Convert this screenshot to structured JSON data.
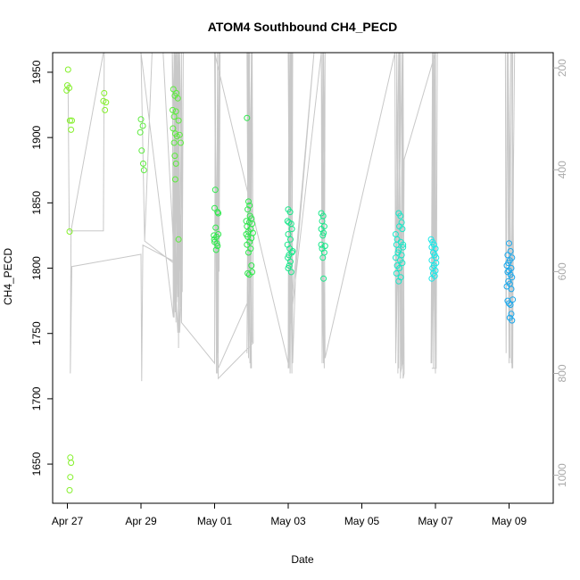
{
  "chart_data": {
    "type": "scatter",
    "title": "ATOM4 Southbound CH4_PECD",
    "xlabel": "Date",
    "ylabel": "CH4_PECD",
    "x_tick_labels": [
      {
        "label": "Apr 27",
        "day": 0
      },
      {
        "label": "Apr 29",
        "day": 2
      },
      {
        "label": "May 01",
        "day": 4
      },
      {
        "label": "May 03",
        "day": 6
      },
      {
        "label": "May 05",
        "day": 8
      },
      {
        "label": "May 07",
        "day": 10
      },
      {
        "label": "May 09",
        "day": 12
      }
    ],
    "xlim": [
      -0.4,
      13.2
    ],
    "ylim": [
      1620,
      1965
    ],
    "yticks": [
      1650,
      1700,
      1750,
      1800,
      1850,
      1900,
      1950
    ],
    "y2lim": [
      1055,
      170
    ],
    "y2ticks": [
      200,
      400,
      600,
      800,
      1000
    ],
    "y2_color": "#aaaaaa",
    "point_colors": [
      "#84f02a",
      "#5bec3c",
      "#2ee84c",
      "#18e88a",
      "#18e8c8",
      "#18e8e8",
      "#1aa8ec"
    ],
    "series": [
      {
        "color_index": 0,
        "points": [
          [
            0.02,
            1952
          ],
          [
            0.0,
            1940
          ],
          [
            0.05,
            1938
          ],
          [
            -0.02,
            1936
          ],
          [
            0.07,
            1913
          ],
          [
            0.12,
            1913
          ],
          [
            0.1,
            1906
          ],
          [
            0.06,
            1828
          ],
          [
            0.08,
            1655
          ],
          [
            0.1,
            1651
          ],
          [
            0.08,
            1640
          ],
          [
            0.06,
            1630
          ]
        ]
      },
      {
        "color_index": 0,
        "points": [
          [
            1.0,
            1934
          ],
          [
            0.98,
            1928
          ],
          [
            1.05,
            1927
          ],
          [
            1.02,
            1921
          ]
        ]
      },
      {
        "color_index": 1,
        "points": [
          [
            2.0,
            1914
          ],
          [
            2.05,
            1909
          ],
          [
            1.98,
            1904
          ],
          [
            2.02,
            1890
          ],
          [
            2.06,
            1880
          ],
          [
            2.08,
            1875
          ]
        ]
      },
      {
        "color_index": 1,
        "points": [
          [
            2.88,
            1937
          ],
          [
            2.92,
            1932
          ],
          [
            2.96,
            1934
          ],
          [
            3.0,
            1930
          ],
          [
            2.86,
            1921
          ],
          [
            2.95,
            1920
          ],
          [
            2.9,
            1916
          ],
          [
            3.02,
            1913
          ],
          [
            2.87,
            1907
          ],
          [
            2.93,
            1903
          ],
          [
            3.05,
            1902
          ],
          [
            2.98,
            1901
          ],
          [
            2.9,
            1896
          ],
          [
            3.08,
            1896
          ],
          [
            2.92,
            1886
          ],
          [
            2.95,
            1880
          ],
          [
            2.93,
            1868
          ],
          [
            3.02,
            1822
          ]
        ]
      },
      {
        "color_index": 2,
        "points": [
          [
            4.02,
            1860
          ],
          [
            4.0,
            1846
          ],
          [
            4.08,
            1843
          ],
          [
            4.1,
            1842
          ],
          [
            4.03,
            1831
          ],
          [
            3.98,
            1825
          ],
          [
            4.05,
            1824
          ],
          [
            4.0,
            1820
          ],
          [
            4.08,
            1817
          ],
          [
            4.04,
            1814
          ],
          [
            3.99,
            1822
          ],
          [
            4.1,
            1826
          ],
          [
            4.06,
            1819
          ]
        ]
      },
      {
        "color_index": 2,
        "points": [
          [
            4.88,
            1915
          ],
          [
            4.92,
            1851
          ],
          [
            4.95,
            1848
          ],
          [
            4.9,
            1845
          ],
          [
            4.96,
            1840
          ],
          [
            5.0,
            1838
          ],
          [
            4.86,
            1836
          ],
          [
            4.94,
            1835
          ],
          [
            5.02,
            1834
          ],
          [
            4.88,
            1832
          ],
          [
            4.98,
            1830
          ],
          [
            4.92,
            1828
          ],
          [
            5.04,
            1827
          ],
          [
            4.86,
            1826
          ],
          [
            4.9,
            1824
          ],
          [
            5.0,
            1823
          ],
          [
            4.95,
            1820
          ],
          [
            4.88,
            1818
          ],
          [
            4.98,
            1815
          ],
          [
            4.92,
            1812
          ],
          [
            4.9,
            1796
          ],
          [
            5.02,
            1797
          ],
          [
            4.94,
            1795
          ],
          [
            5.0,
            1802
          ]
        ]
      },
      {
        "color_index": 3,
        "points": [
          [
            6.0,
            1845
          ],
          [
            6.05,
            1843
          ],
          [
            5.98,
            1836
          ],
          [
            6.02,
            1835
          ],
          [
            6.08,
            1834
          ],
          [
            6.1,
            1830
          ],
          [
            6.0,
            1826
          ],
          [
            6.06,
            1822
          ],
          [
            5.98,
            1818
          ],
          [
            6.04,
            1815
          ],
          [
            6.1,
            1812
          ],
          [
            6.02,
            1810
          ],
          [
            5.99,
            1808
          ],
          [
            6.06,
            1805
          ],
          [
            6.03,
            1802
          ],
          [
            6.08,
            1797
          ],
          [
            6.0,
            1800
          ],
          [
            6.12,
            1813
          ]
        ]
      },
      {
        "color_index": 3,
        "points": [
          [
            6.9,
            1842
          ],
          [
            6.95,
            1840
          ],
          [
            6.92,
            1836
          ],
          [
            6.98,
            1832
          ],
          [
            6.9,
            1830
          ],
          [
            6.96,
            1827
          ],
          [
            6.94,
            1825
          ],
          [
            6.9,
            1818
          ],
          [
            7.0,
            1817
          ],
          [
            6.92,
            1815
          ],
          [
            6.98,
            1812
          ],
          [
            6.94,
            1808
          ],
          [
            6.96,
            1792
          ]
        ]
      },
      {
        "color_index": 4,
        "points": [
          [
            8.92,
            1826
          ],
          [
            9.0,
            1842
          ],
          [
            9.05,
            1840
          ],
          [
            9.08,
            1835
          ],
          [
            9.02,
            1832
          ],
          [
            9.1,
            1830
          ],
          [
            8.96,
            1822
          ],
          [
            9.06,
            1820
          ],
          [
            8.94,
            1818
          ],
          [
            9.12,
            1816
          ],
          [
            9.0,
            1814
          ],
          [
            8.98,
            1812
          ],
          [
            9.08,
            1810
          ],
          [
            8.92,
            1808
          ],
          [
            9.04,
            1806
          ],
          [
            9.1,
            1804
          ],
          [
            8.96,
            1802
          ],
          [
            9.02,
            1800
          ],
          [
            8.94,
            1796
          ],
          [
            9.06,
            1793
          ],
          [
            9.0,
            1790
          ],
          [
            9.12,
            1818
          ]
        ]
      },
      {
        "color_index": 5,
        "points": [
          [
            9.88,
            1822
          ],
          [
            9.92,
            1820
          ],
          [
            9.96,
            1818
          ],
          [
            9.9,
            1816
          ],
          [
            10.0,
            1815
          ],
          [
            9.94,
            1812
          ],
          [
            9.98,
            1810
          ],
          [
            9.9,
            1806
          ],
          [
            10.02,
            1804
          ],
          [
            9.96,
            1802
          ],
          [
            9.92,
            1800
          ],
          [
            10.0,
            1798
          ],
          [
            9.94,
            1796
          ],
          [
            9.98,
            1794
          ],
          [
            9.9,
            1792
          ],
          [
            10.02,
            1808
          ]
        ]
      },
      {
        "color_index": 6,
        "points": [
          [
            12.0,
            1819
          ],
          [
            12.04,
            1813
          ],
          [
            11.96,
            1810
          ],
          [
            12.08,
            1808
          ],
          [
            12.02,
            1806
          ],
          [
            11.98,
            1804
          ],
          [
            11.94,
            1802
          ],
          [
            12.06,
            1800
          ],
          [
            12.0,
            1798
          ],
          [
            11.96,
            1797
          ],
          [
            12.04,
            1795
          ],
          [
            12.08,
            1793
          ],
          [
            11.98,
            1790
          ],
          [
            12.02,
            1788
          ],
          [
            11.94,
            1786
          ],
          [
            12.06,
            1784
          ],
          [
            12.1,
            1776
          ],
          [
            11.96,
            1775
          ],
          [
            12.0,
            1773
          ],
          [
            12.04,
            1772
          ],
          [
            12.06,
            1765
          ],
          [
            12.02,
            1762
          ],
          [
            12.08,
            1760
          ]
        ]
      }
    ],
    "background_line": [
      [
        0.02,
        232
      ],
      [
        0.05,
        520
      ],
      [
        0.98,
        520
      ],
      [
        1.0,
        168
      ],
      [
        0.98,
        168
      ],
      [
        0.1,
        520
      ],
      [
        0.08,
        800
      ],
      [
        0.12,
        590
      ],
      [
        2.0,
        566
      ],
      [
        2.02,
        815
      ],
      [
        2.05,
        548
      ],
      [
        2.9,
        580
      ],
      [
        2.95,
        170
      ],
      [
        2.92,
        210
      ],
      [
        2.9,
        690
      ],
      [
        3.0,
        170
      ],
      [
        3.02,
        750
      ],
      [
        3.05,
        170
      ],
      [
        3.0,
        620
      ],
      [
        2.85,
        170
      ],
      [
        2.88,
        690
      ],
      [
        2.0,
        170
      ],
      [
        2.3,
        170
      ],
      [
        2.1,
        540
      ],
      [
        2.0,
        170
      ],
      [
        2.1,
        540
      ],
      [
        2.9,
        584
      ],
      [
        2.92,
        620
      ],
      [
        2.95,
        170
      ],
      [
        3.0,
        400
      ],
      [
        3.05,
        560
      ],
      [
        3.0,
        600
      ],
      [
        2.85,
        170
      ],
      [
        2.88,
        690
      ],
      [
        2.9,
        170
      ],
      [
        2.95,
        700
      ],
      [
        3.0,
        170
      ],
      [
        3.05,
        720
      ],
      [
        3.1,
        640
      ],
      [
        3.08,
        420
      ],
      [
        3.1,
        170
      ],
      [
        2.6,
        170
      ],
      [
        2.9,
        570
      ],
      [
        3.0,
        720
      ],
      [
        3.1,
        440
      ],
      [
        3.05,
        170
      ],
      [
        2.97,
        170
      ],
      [
        3.0,
        650
      ],
      [
        2.92,
        170
      ],
      [
        2.93,
        680
      ],
      [
        2.95,
        170
      ],
      [
        2.97,
        660
      ],
      [
        3.0,
        170
      ],
      [
        3.05,
        720
      ],
      [
        3.02,
        170
      ],
      [
        3.08,
        670
      ],
      [
        3.1,
        170
      ],
      [
        3.12,
        640
      ],
      [
        3.15,
        170
      ],
      [
        3.1,
        700
      ],
      [
        4.0,
        780
      ],
      [
        4.02,
        170
      ],
      [
        4.05,
        800
      ],
      [
        4.08,
        170
      ],
      [
        4.1,
        760
      ],
      [
        4.12,
        170
      ],
      [
        4.05,
        780
      ],
      [
        4.0,
        170
      ],
      [
        4.08,
        770
      ],
      [
        4.12,
        170
      ],
      [
        4.08,
        800
      ],
      [
        4.1,
        430
      ],
      [
        4.12,
        600
      ],
      [
        4.15,
        170
      ],
      [
        4.0,
        170
      ],
      [
        4.1,
        790
      ],
      [
        4.9,
        660
      ],
      [
        4.95,
        170
      ],
      [
        4.88,
        760
      ],
      [
        4.92,
        170
      ],
      [
        4.96,
        780
      ],
      [
        4.9,
        170
      ],
      [
        5.0,
        790
      ],
      [
        4.94,
        170
      ],
      [
        5.02,
        740
      ],
      [
        4.9,
        170
      ],
      [
        4.95,
        720
      ],
      [
        4.88,
        170
      ],
      [
        4.92,
        770
      ],
      [
        5.0,
        170
      ],
      [
        4.98,
        790
      ],
      [
        5.02,
        170
      ],
      [
        5.05,
        740
      ],
      [
        4.1,
        810
      ],
      [
        4.0,
        170
      ],
      [
        6.0,
        780
      ],
      [
        6.02,
        170
      ],
      [
        6.05,
        800
      ],
      [
        6.08,
        170
      ],
      [
        6.0,
        790
      ],
      [
        6.05,
        170
      ],
      [
        6.1,
        800
      ],
      [
        6.12,
        170
      ],
      [
        6.02,
        780
      ],
      [
        6.06,
        170
      ],
      [
        6.1,
        780
      ],
      [
        6.0,
        170
      ],
      [
        6.05,
        800
      ],
      [
        6.1,
        170
      ],
      [
        6.02,
        790
      ],
      [
        6.08,
        170
      ],
      [
        6.0,
        790
      ],
      [
        6.1,
        170
      ],
      [
        6.12,
        780
      ],
      [
        6.2,
        600
      ],
      [
        6.7,
        170
      ],
      [
        6.0,
        740
      ],
      [
        6.9,
        170
      ],
      [
        6.92,
        770
      ],
      [
        6.94,
        170
      ],
      [
        6.96,
        780
      ],
      [
        6.9,
        170
      ],
      [
        6.98,
        790
      ],
      [
        7.0,
        170
      ],
      [
        6.92,
        780
      ],
      [
        6.96,
        170
      ],
      [
        7.0,
        770
      ],
      [
        8.9,
        170
      ],
      [
        8.92,
        760
      ],
      [
        8.95,
        170
      ],
      [
        9.0,
        790
      ],
      [
        9.05,
        170
      ],
      [
        8.98,
        800
      ],
      [
        9.02,
        170
      ],
      [
        9.05,
        810
      ],
      [
        9.1,
        170
      ],
      [
        8.92,
        780
      ],
      [
        9.0,
        170
      ],
      [
        9.08,
        790
      ],
      [
        9.12,
        170
      ],
      [
        9.05,
        800
      ],
      [
        9.1,
        780
      ],
      [
        9.12,
        170
      ],
      [
        9.15,
        800
      ],
      [
        9.12,
        810
      ],
      [
        9.15,
        380
      ],
      [
        10.0,
        170
      ],
      [
        9.88,
        780
      ],
      [
        9.92,
        170
      ],
      [
        9.95,
        790
      ],
      [
        9.98,
        170
      ],
      [
        10.0,
        800
      ],
      [
        9.95,
        170
      ],
      [
        9.9,
        780
      ],
      [
        10.0,
        170
      ],
      [
        10.02,
        790
      ],
      [
        10.05,
        170
      ],
      [
        10.02,
        790
      ],
      [
        9.9,
        790
      ],
      [
        10.0,
        790
      ],
      [
        9.92,
        170
      ],
      [
        9.95,
        770
      ],
      [
        9.98,
        170
      ],
      [
        10.02,
        760
      ],
      [
        10.05,
        170
      ],
      [
        11.0,
        170
      ],
      [
        11.9,
        170
      ],
      [
        11.92,
        760
      ],
      [
        11.95,
        170
      ],
      [
        12.0,
        780
      ],
      [
        12.05,
        170
      ],
      [
        12.02,
        770
      ],
      [
        11.98,
        170
      ],
      [
        12.08,
        790
      ],
      [
        12.1,
        170
      ],
      [
        12.06,
        780
      ],
      [
        12.12,
        560
      ],
      [
        12.08,
        170
      ],
      [
        12.1,
        790
      ],
      [
        12.12,
        400
      ],
      [
        12.15,
        170
      ]
    ],
    "line_color": "#c8c8c8"
  }
}
